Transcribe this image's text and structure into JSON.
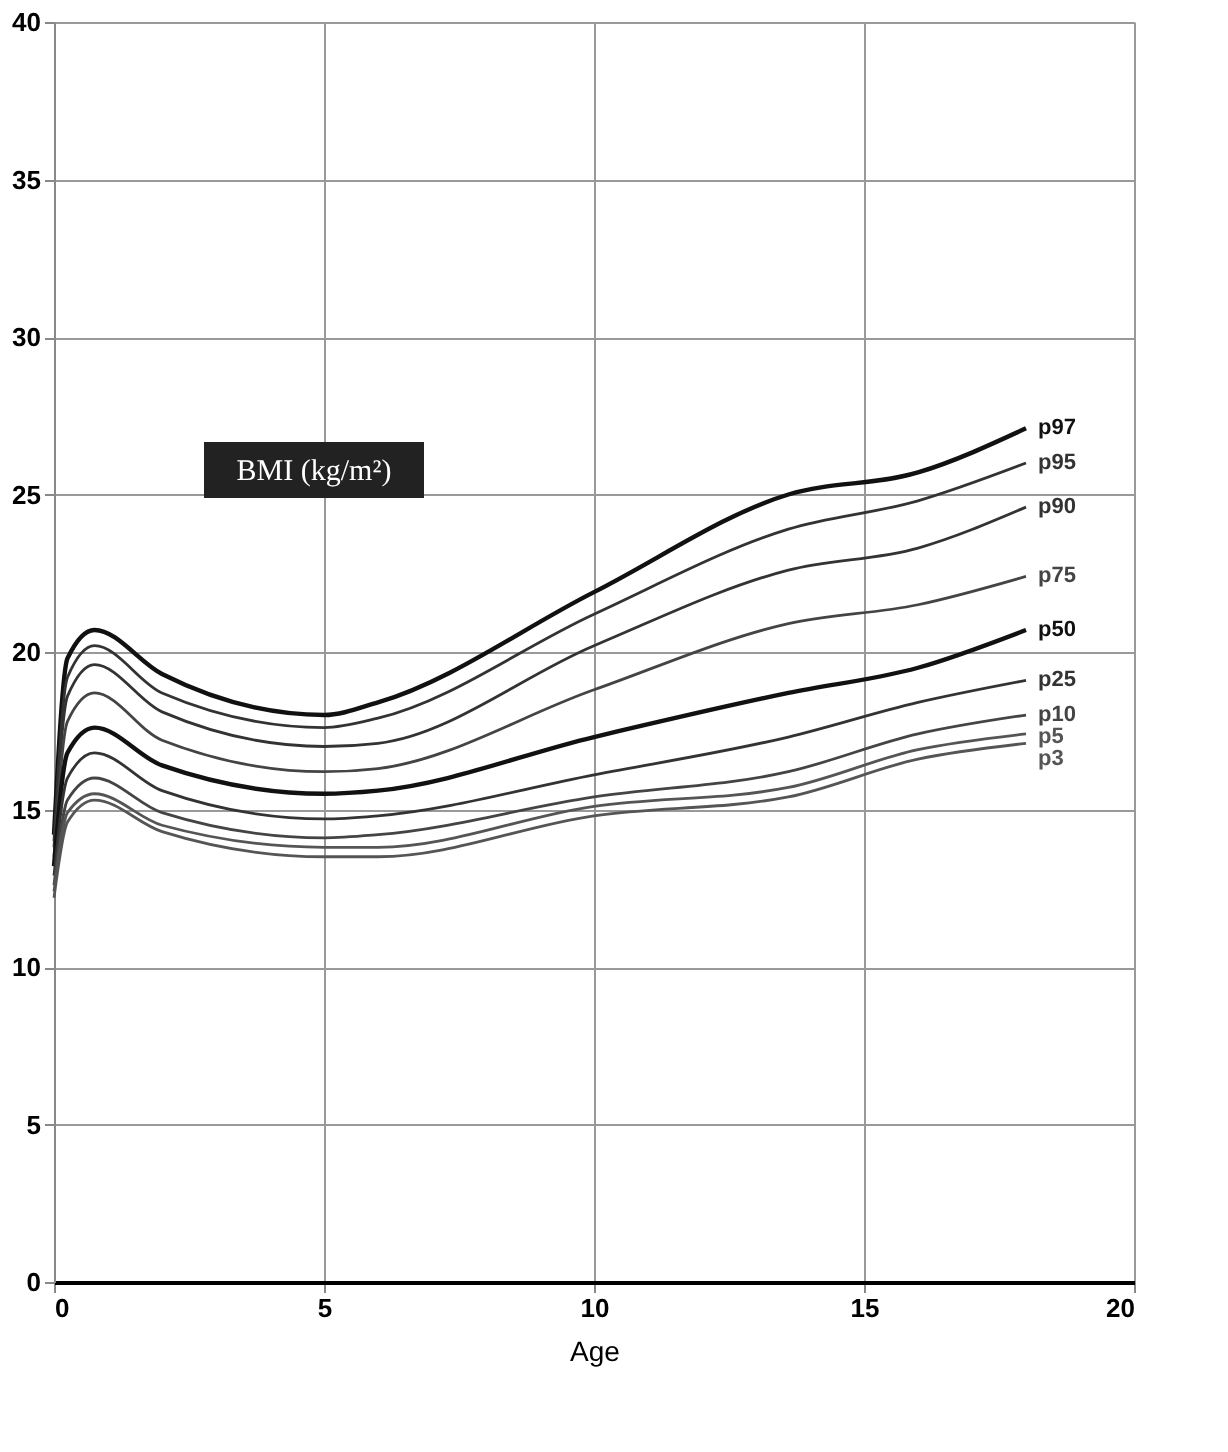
{
  "chart_data": {
    "type": "line",
    "xlabel": "Age",
    "annotations": [
      "BMI (kg/m²)"
    ],
    "x": [
      0,
      0.25,
      0.75,
      2,
      5,
      6,
      10,
      13.6,
      16,
      18
    ],
    "series": [
      {
        "name": "p97",
        "color": "#111111",
        "values": [
          14.2,
          19.8,
          20.7,
          19.3,
          18.0,
          18.4,
          21.9,
          25.0,
          25.7,
          27.1
        ]
      },
      {
        "name": "p95",
        "color": "#333333",
        "values": [
          14.0,
          19.2,
          20.2,
          18.7,
          17.6,
          17.9,
          21.2,
          23.9,
          24.8,
          26.0
        ]
      },
      {
        "name": "p90",
        "color": "#333333",
        "values": [
          13.8,
          18.6,
          19.6,
          18.1,
          17.0,
          17.1,
          20.2,
          22.6,
          23.3,
          24.6
        ]
      },
      {
        "name": "p75",
        "color": "#444444",
        "values": [
          13.5,
          17.8,
          18.7,
          17.2,
          16.2,
          16.3,
          18.8,
          20.9,
          21.5,
          22.4
        ]
      },
      {
        "name": "p50",
        "color": "#111111",
        "values": [
          13.2,
          16.8,
          17.6,
          16.4,
          15.5,
          15.6,
          17.3,
          18.7,
          19.5,
          20.7
        ]
      },
      {
        "name": "p25",
        "color": "#333333",
        "values": [
          12.9,
          16.0,
          16.8,
          15.6,
          14.7,
          14.8,
          16.1,
          17.3,
          18.4,
          19.1
        ]
      },
      {
        "name": "p10",
        "color": "#444444",
        "values": [
          12.6,
          15.3,
          16.0,
          14.9,
          14.1,
          14.2,
          15.4,
          16.2,
          17.4,
          18.0
        ]
      },
      {
        "name": "p5",
        "color": "#555555",
        "values": [
          12.4,
          14.9,
          15.5,
          14.5,
          13.8,
          13.8,
          15.1,
          15.7,
          16.9,
          17.4
        ]
      },
      {
        "name": "p3",
        "color": "#555555",
        "values": [
          12.2,
          14.6,
          15.3,
          14.3,
          13.5,
          13.5,
          14.8,
          15.4,
          16.6,
          17.1
        ]
      }
    ],
    "xlim": [
      0,
      20
    ],
    "xticks": [
      0,
      5,
      10,
      15,
      20
    ],
    "ylim": [
      0,
      40
    ],
    "yticks": [
      0,
      5,
      10,
      15,
      20,
      25,
      30,
      35,
      40
    ],
    "grid": true,
    "legend": false,
    "marker": "none",
    "line_style": "solid"
  }
}
